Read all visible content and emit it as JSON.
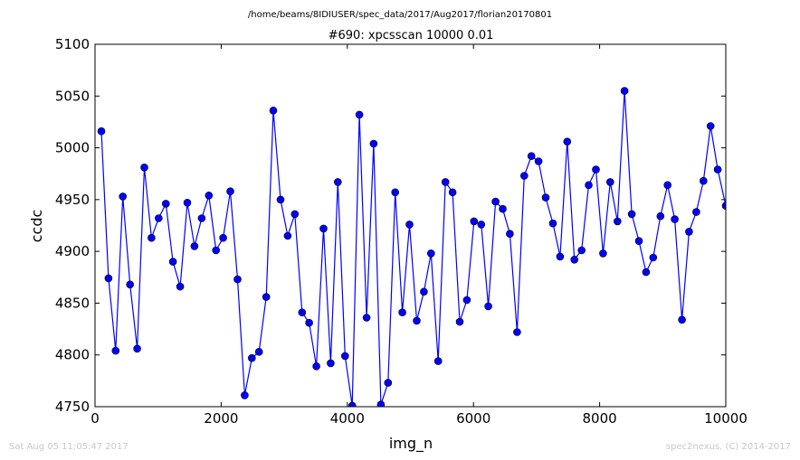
{
  "chart_data": {
    "type": "line",
    "suptitle": "/home/beams/8IDIUSER/spec_data/2017/Aug2017/florian20170801",
    "title": "#690: xpcsscan 10000 0.01",
    "xlabel": "img_n",
    "ylabel": "ccdc",
    "xlim": [
      0,
      10000
    ],
    "ylim": [
      4750,
      5100
    ],
    "xticks": [
      0,
      2000,
      4000,
      6000,
      8000,
      10000
    ],
    "yticks": [
      4750,
      4800,
      4850,
      4900,
      4950,
      5000,
      5050,
      5100
    ],
    "grid": false,
    "legend": "none",
    "markers": "circle",
    "color": "#0000ff",
    "series": [
      {
        "x": [
          100,
          214,
          327,
          441,
          555,
          668,
          782,
          895,
          1009,
          1123,
          1236,
          1350,
          1464,
          1577,
          1691,
          1805,
          1918,
          2032,
          2145,
          2259,
          2373,
          2486,
          2600,
          2714,
          2827,
          2941,
          3055,
          3168,
          3282,
          3395,
          3509,
          3623,
          3736,
          3850,
          3964,
          4077,
          4191,
          4305,
          4418,
          4532,
          4645,
          4759,
          4873,
          4986,
          5100,
          5214,
          5327,
          5441,
          5555,
          5668,
          5782,
          5895,
          6009,
          6123,
          6236,
          6350,
          6464,
          6577,
          6691,
          6805,
          6918,
          7032,
          7145,
          7259,
          7373,
          7486,
          7600,
          7714,
          7827,
          7941,
          8055,
          8168,
          8282,
          8395,
          8509,
          8623,
          8736,
          8850,
          8964,
          9077,
          9191,
          9305,
          9418,
          9532,
          9645,
          9759,
          9873,
          10000
        ],
        "y": [
          5016,
          4874,
          4804,
          4953,
          4868,
          4806,
          4981,
          4913,
          4932,
          4946,
          4890,
          4866,
          4947,
          4905,
          4932,
          4954,
          4901,
          4913,
          4958,
          4873,
          4761,
          4797,
          4803,
          4856,
          5036,
          4950,
          4915,
          4936,
          4841,
          4831,
          4789,
          4922,
          4792,
          4967,
          4799,
          4751,
          5032,
          4836,
          5004,
          4752,
          4773,
          4957,
          4841,
          4926,
          4833,
          4861,
          4898,
          4794,
          4967,
          4957,
          4832,
          4853,
          4929,
          4926,
          4847,
          4948,
          4941,
          4917,
          4822,
          4973,
          4992,
          4987,
          4952,
          4927,
          4895,
          5006,
          4892,
          4901,
          4964,
          4979,
          4898,
          4967,
          4929,
          5055,
          4936,
          4910,
          4880,
          4894,
          4934,
          4964,
          4931,
          4834,
          4919,
          4938,
          4968,
          5021,
          4979,
          4944
        ]
      }
    ]
  },
  "footer": {
    "left": "Sat Aug 05 11:05:47 2017",
    "right": "spec2nexus, (C) 2014-2017"
  }
}
